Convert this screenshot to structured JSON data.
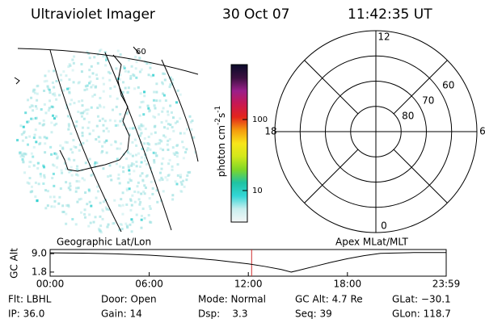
{
  "header": {
    "instrument": "Ultraviolet Imager",
    "date": "30 Oct 07",
    "time": "11:42:35 UT"
  },
  "map": {
    "label": "60",
    "caption": "Geographic Lat/Lon"
  },
  "colorbar": {
    "type": "colorbar",
    "label_parts": [
      "photon cm",
      "-2",
      "s",
      "-1"
    ],
    "ylim": [
      3.6,
      593
    ],
    "yticks": [
      10,
      100
    ],
    "log_scale": true,
    "colors": [
      "#f4f6f6",
      "#c8eeee",
      "#33d6d6",
      "#1fc3a3",
      "#7fd728",
      "#d2e81b",
      "#f8e51a",
      "#f59b0e",
      "#e3241b",
      "#c81852",
      "#9a1f8a",
      "#3b1040",
      "#0b0b2a"
    ]
  },
  "polar": {
    "type": "polar",
    "caption": "Apex MLat/MLT",
    "rlim": [
      90,
      50
    ],
    "rticks": [
      80,
      70,
      60
    ],
    "thetaticks": [
      12,
      18,
      6,
      0
    ]
  },
  "chart_data": {
    "type": "line",
    "ylabel": "GC Alt",
    "x": [
      0,
      2,
      4,
      6,
      8,
      10,
      12,
      13,
      14,
      14.6,
      15,
      16,
      17,
      18,
      19,
      20,
      22,
      23.98
    ],
    "values": [
      9.3,
      9.2,
      8.9,
      8.4,
      7.6,
      6.5,
      5.0,
      4.0,
      2.8,
      1.8,
      2.4,
      4.0,
      5.6,
      7.0,
      8.2,
      9.1,
      9.4,
      9.4
    ],
    "color": "#000000",
    "xlim": [
      0,
      23.98
    ],
    "ylim": [
      0.2,
      10.6
    ],
    "xticks": [
      {
        "value": 0,
        "label": "00:00"
      },
      {
        "value": 6,
        "label": "06:00"
      },
      {
        "value": 12,
        "label": "12:00"
      },
      {
        "value": 18,
        "label": "18:00"
      },
      {
        "value": 23.98,
        "label": "23:59"
      }
    ],
    "yticks": [
      {
        "value": 9,
        "label": "9.0"
      },
      {
        "value": 1.8,
        "label": "1.8"
      }
    ],
    "time_marker": 12.2,
    "time_marker_color": "#d03030"
  },
  "footer": {
    "rows": [
      [
        "Flt: LBHL",
        "Door: Open",
        "Mode: Normal",
        "GC Alt: 4.7 Re",
        "GLat: −30.1"
      ],
      [
        "IP: 36.0",
        "Gain: 14",
        "Dsp:    3.3",
        "Seq: 39",
        "GLon: 118.7"
      ]
    ]
  }
}
